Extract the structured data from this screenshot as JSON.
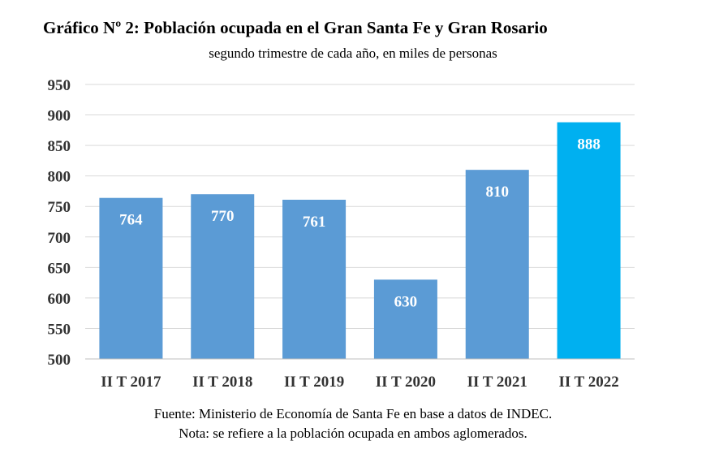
{
  "chart_data": {
    "type": "bar",
    "title": "Gráfico Nº 2: Población ocupada en el Gran Santa Fe y Gran Rosario",
    "subtitle": "segundo trimestre de cada año, en miles de personas",
    "categories": [
      "II T 2017",
      "II T 2018",
      "II T 2019",
      "II T 2020",
      "II T 2021",
      "II T 2022"
    ],
    "values": [
      764,
      770,
      761,
      630,
      810,
      888
    ],
    "data_labels": [
      "764",
      "770",
      "761",
      "630",
      "810",
      "888"
    ],
    "yticks": [
      500,
      550,
      600,
      650,
      700,
      750,
      800,
      850,
      900,
      950
    ],
    "ylim": [
      500,
      950
    ],
    "grid": true,
    "xlabel": "",
    "ylabel": "",
    "bar_color": "#5b9bd5",
    "highlight_color": "#00b0f0",
    "highlight_index": 5
  },
  "footer": {
    "source": "Fuente: Ministerio de Economía de Santa Fe en base a datos de INDEC.",
    "note": "Nota: se refiere a la población ocupada en ambos aglomerados."
  }
}
